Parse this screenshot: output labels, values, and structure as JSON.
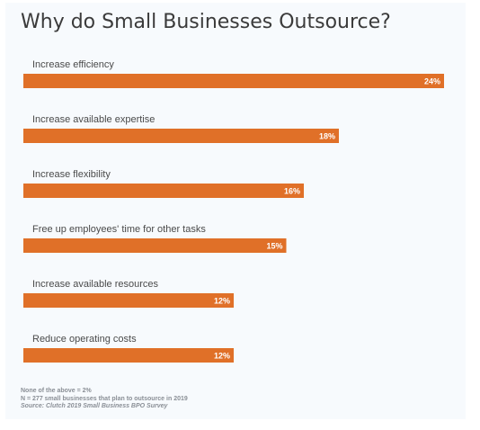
{
  "chart_data": {
    "type": "bar",
    "orientation": "horizontal",
    "title": "Why do Small Businesses Outsource?",
    "categories": [
      "Increase efficiency",
      "Increase available expertise",
      "Increase flexibility",
      "Free up employees' time for other tasks",
      "Increase available resources",
      "Reduce operating costs"
    ],
    "values": [
      24,
      18,
      16,
      15,
      12,
      12
    ],
    "value_labels": [
      "24%",
      "18%",
      "16%",
      "15%",
      "12%",
      "12%"
    ],
    "unit": "%",
    "xlim": [
      0,
      24
    ],
    "grid": false,
    "legend": "none"
  },
  "colors": {
    "bar": "#e07028",
    "bar_label": "#ffffff",
    "category_label": "#4a4a4a",
    "background": "#f7fafd"
  },
  "notes": {
    "line1": "None of the above = 2%",
    "line2": "N = 277 small businesses that plan to outsource in 2019",
    "source": "Source: Clutch 2019 Small Business BPO Survey"
  }
}
